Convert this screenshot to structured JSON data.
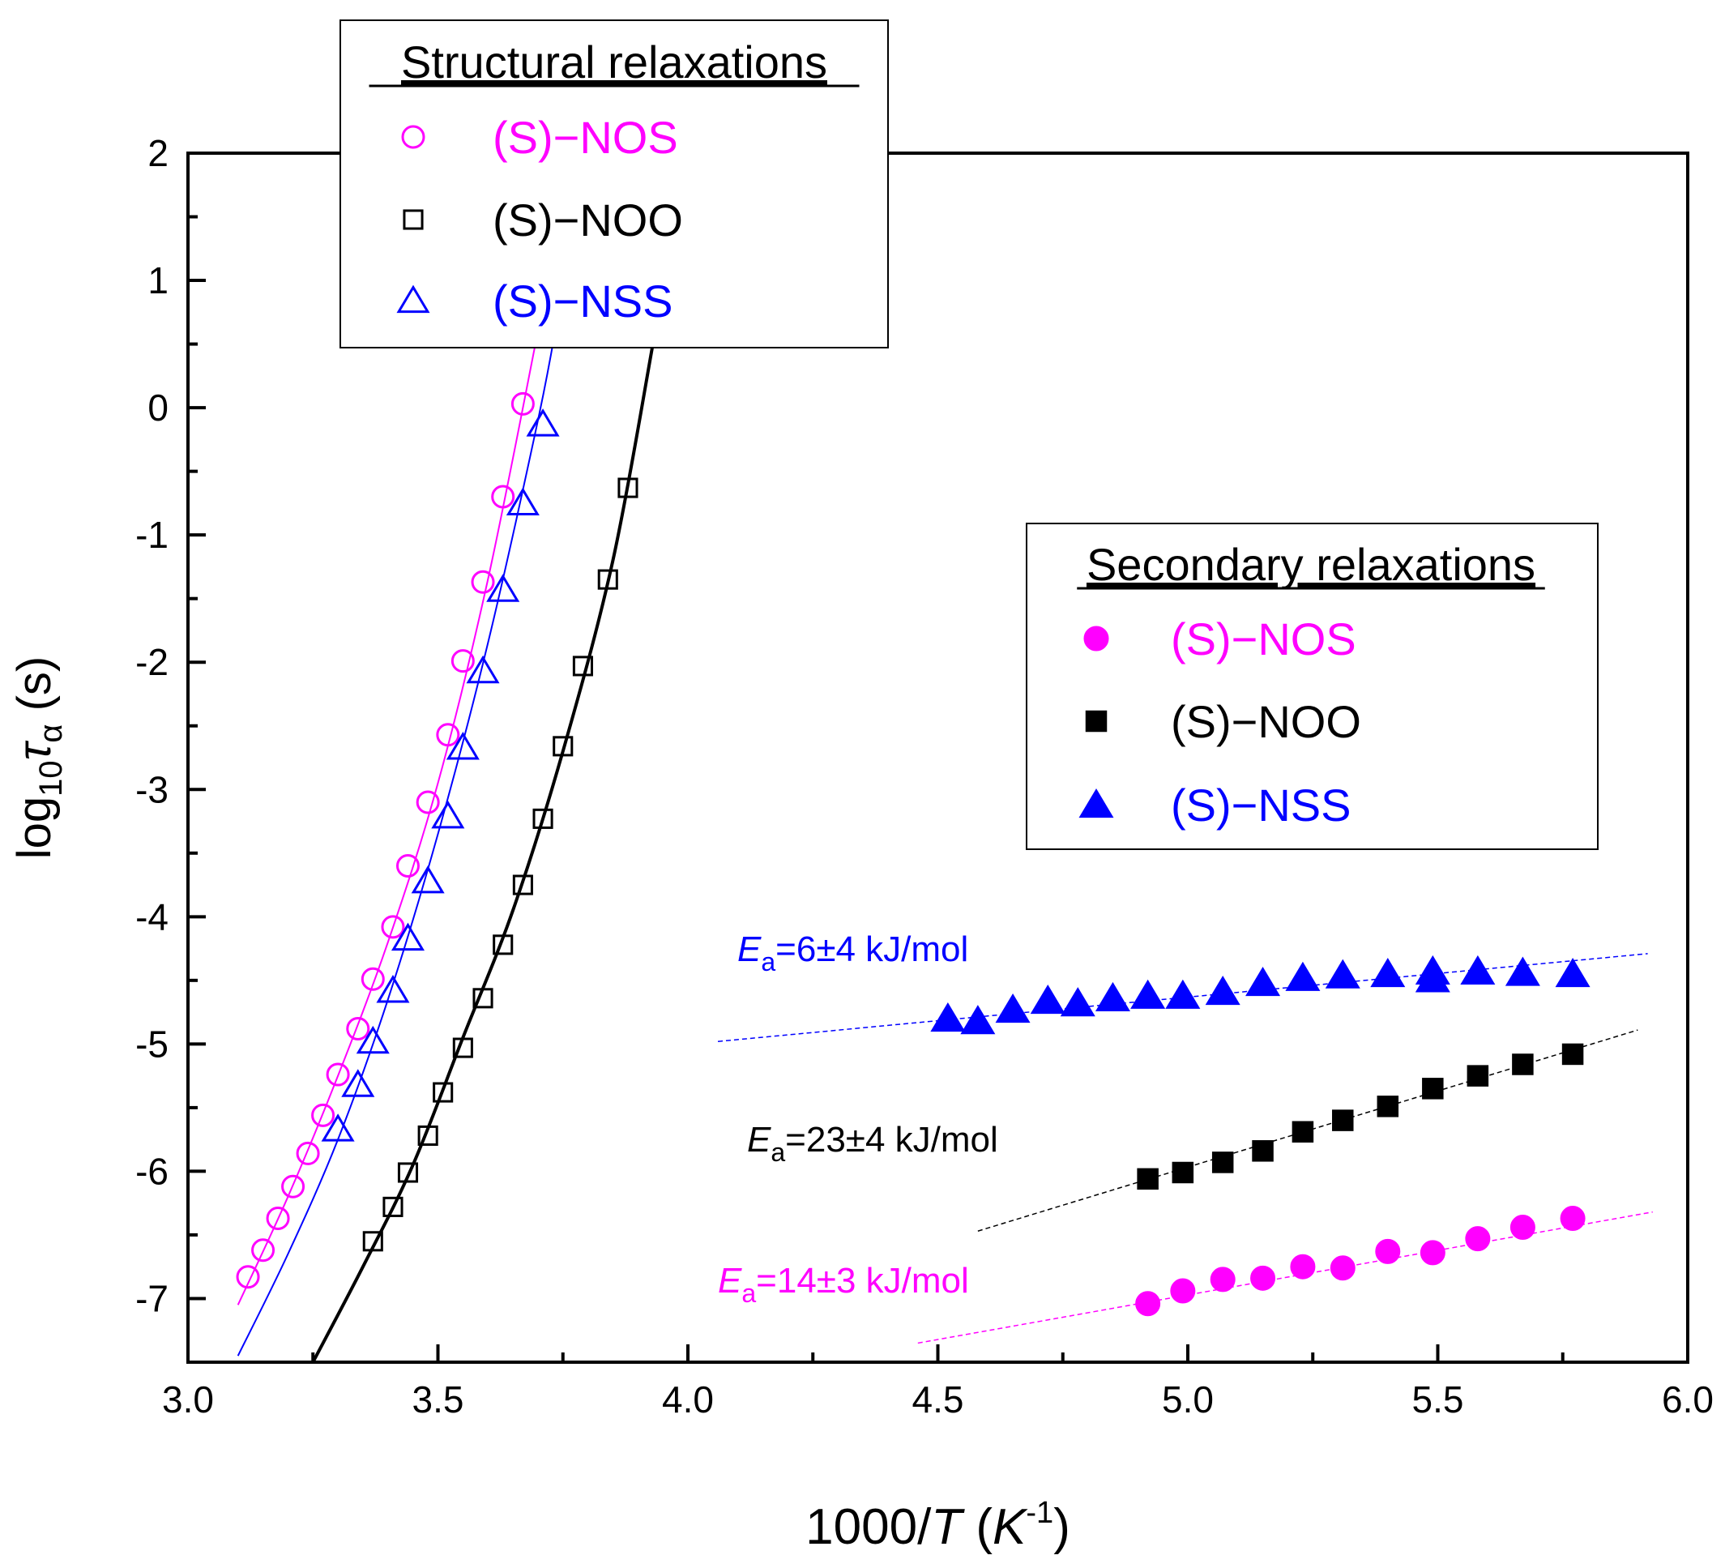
{
  "chart_data": {
    "type": "scatter",
    "xlabel": {
      "prefix": "1000/",
      "var": "T",
      "mid": " (",
      "unit_base": "K",
      "unit_exp": "-1",
      "suffix": ")"
    },
    "ylabel": {
      "base": "log",
      "sub": "10",
      "var": "τ",
      "var_sub": "α",
      "suffix": " (s)"
    },
    "xlim": [
      3.0,
      6.0
    ],
    "ylim": [
      -7.5,
      2.0
    ],
    "xticks": [
      "3.0",
      "3.5",
      "4.0",
      "4.5",
      "5.0",
      "5.5",
      "6.0"
    ],
    "yticks": [
      "2",
      "1",
      "0",
      "-1",
      "-2",
      "-3",
      "-4",
      "-5",
      "-6",
      "-7"
    ],
    "grid": false,
    "colors": {
      "nos": "#ff00ff",
      "noo": "#000000",
      "nss": "#0000ff"
    },
    "legends": [
      {
        "title": "Structural relaxations",
        "placement": "top-left",
        "marker_fill": "open",
        "entries": [
          {
            "label": "(S)−NOS",
            "series": "nos",
            "marker": "circle"
          },
          {
            "label": "(S)−NOO",
            "series": "noo",
            "marker": "square"
          },
          {
            "label": "(S)−NSS",
            "series": "nss",
            "marker": "triangle"
          }
        ]
      },
      {
        "title": "Secondary relaxations",
        "placement": "center-right",
        "marker_fill": "filled",
        "entries": [
          {
            "label": "(S)−NOS",
            "series": "nos",
            "marker": "circle"
          },
          {
            "label": "(S)−NOO",
            "series": "noo",
            "marker": "square"
          },
          {
            "label": "(S)−NSS",
            "series": "nss",
            "marker": "triangle"
          }
        ]
      }
    ],
    "annotations": [
      {
        "var": "E",
        "sub": "a",
        "text": "=6±4 kJ/mol",
        "series": "nss"
      },
      {
        "var": "E",
        "sub": "a",
        "text": "=23±4 kJ/mol",
        "series": "noo"
      },
      {
        "var": "E",
        "sub": "a",
        "text": "=14±3 kJ/mol",
        "series": "nos"
      }
    ],
    "structural": [
      {
        "series": "nos",
        "marker": "circle",
        "x": [
          3.12,
          3.15,
          3.18,
          3.21,
          3.24,
          3.27,
          3.3,
          3.34,
          3.37,
          3.41,
          3.44,
          3.48,
          3.52,
          3.55,
          3.59,
          3.63,
          3.67
        ],
        "y": [
          -6.83,
          -6.62,
          -6.37,
          -6.12,
          -5.86,
          -5.56,
          -5.24,
          -4.88,
          -4.49,
          -4.08,
          -3.6,
          -3.1,
          -2.57,
          -1.99,
          -1.37,
          -0.7,
          0.03
        ],
        "fit": {
          "x": [
            3.1,
            3.2,
            3.3,
            3.4,
            3.5,
            3.6,
            3.7
          ],
          "y": [
            -7.05,
            -6.2,
            -5.25,
            -4.2,
            -2.95,
            -1.35,
            0.6
          ]
        }
      },
      {
        "series": "nss",
        "marker": "triangle",
        "x": [
          3.3,
          3.34,
          3.37,
          3.41,
          3.44,
          3.48,
          3.52,
          3.55,
          3.59,
          3.63,
          3.67,
          3.71
        ],
        "y": [
          -5.67,
          -5.32,
          -4.98,
          -4.58,
          -4.17,
          -3.72,
          -3.21,
          -2.67,
          -2.07,
          -1.43,
          -0.75,
          -0.13
        ],
        "fit": {
          "x": [
            3.1,
            3.2,
            3.3,
            3.4,
            3.5,
            3.6,
            3.7,
            3.74
          ],
          "y": [
            -7.45,
            -6.65,
            -5.75,
            -4.65,
            -3.35,
            -1.85,
            -0.1,
            0.72
          ]
        }
      },
      {
        "series": "noo",
        "marker": "square",
        "x": [
          3.37,
          3.41,
          3.44,
          3.48,
          3.51,
          3.55,
          3.59,
          3.63,
          3.67,
          3.71,
          3.75,
          3.79,
          3.84,
          3.88
        ],
        "y": [
          -6.55,
          -6.28,
          -6.01,
          -5.72,
          -5.38,
          -5.03,
          -4.64,
          -4.22,
          -3.75,
          -3.23,
          -2.66,
          -2.03,
          -1.35,
          -0.63
        ],
        "fit": {
          "x": [
            3.25,
            3.35,
            3.45,
            3.55,
            3.65,
            3.75,
            3.85,
            3.93
          ],
          "y": [
            -7.5,
            -6.75,
            -5.95,
            -4.95,
            -3.95,
            -2.7,
            -1.2,
            0.5
          ]
        }
      }
    ],
    "secondary": [
      {
        "series": "nss",
        "marker": "triangle",
        "x": [
          4.52,
          4.58,
          4.65,
          4.72,
          4.78,
          4.85,
          4.92,
          4.99,
          5.07,
          5.15,
          5.23,
          5.31,
          5.4,
          5.49,
          5.49,
          5.58,
          5.67,
          5.77
        ],
        "y": [
          -4.8,
          -4.82,
          -4.73,
          -4.66,
          -4.68,
          -4.64,
          -4.62,
          -4.62,
          -4.59,
          -4.52,
          -4.48,
          -4.46,
          -4.45,
          -4.43,
          -4.49,
          -4.43,
          -4.44,
          -4.45
        ],
        "fit": {
          "x": [
            4.06,
            5.92
          ],
          "y": [
            -4.98,
            -4.29
          ]
        }
      },
      {
        "series": "noo",
        "marker": "square",
        "x": [
          4.92,
          4.99,
          5.07,
          5.15,
          5.23,
          5.31,
          5.4,
          5.49,
          5.58,
          5.67,
          5.77
        ],
        "y": [
          -6.06,
          -6.01,
          -5.93,
          -5.84,
          -5.69,
          -5.6,
          -5.49,
          -5.35,
          -5.25,
          -5.16,
          -5.08
        ],
        "fit": {
          "x": [
            4.58,
            5.9
          ],
          "y": [
            -6.47,
            -4.89
          ]
        }
      },
      {
        "series": "nos",
        "marker": "circle",
        "x": [
          4.92,
          4.99,
          5.07,
          5.15,
          5.23,
          5.31,
          5.4,
          5.49,
          5.58,
          5.67,
          5.77
        ],
        "y": [
          -7.04,
          -6.94,
          -6.85,
          -6.84,
          -6.75,
          -6.76,
          -6.63,
          -6.64,
          -6.53,
          -6.44,
          -6.37
        ],
        "fit": {
          "x": [
            4.46,
            5.93
          ],
          "y": [
            -7.35,
            -6.32
          ]
        }
      }
    ]
  }
}
